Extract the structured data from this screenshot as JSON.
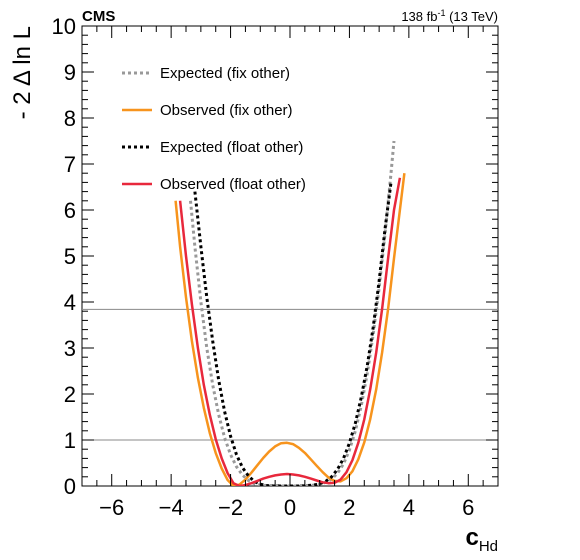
{
  "chart_data": {
    "type": "line",
    "title_left": "CMS",
    "title_right": {
      "text": "138 fb",
      "sup": "-1",
      "suffix": " (13 TeV)"
    },
    "xlabel": {
      "main": "c",
      "sub": "Hd"
    },
    "ylabel": "- 2 Δ ln L",
    "xlim": [
      -7,
      7
    ],
    "ylim": [
      0,
      10
    ],
    "x_ticks": [
      -6,
      -4,
      -2,
      0,
      2,
      4,
      6
    ],
    "y_ticks": [
      0,
      1,
      2,
      3,
      4,
      5,
      6,
      7,
      8,
      9,
      10
    ],
    "reference_lines": [
      1,
      3.84
    ],
    "legend_position": "top-left",
    "colors": {
      "expected_fix": "#999999",
      "observed_fix": "#f7941d",
      "expected_float": "#000000",
      "observed_float": "#e8283c",
      "reference": "#888888"
    },
    "series": [
      {
        "name": "Expected (fix other)",
        "style": "dotted",
        "color": "#999999",
        "x": [
          -3.35,
          -3.2,
          -3.0,
          -2.8,
          -2.6,
          -2.4,
          -2.2,
          -2.0,
          -1.8,
          -1.6,
          -1.4,
          -1.2,
          -1.0,
          -0.8,
          -0.6,
          -0.4,
          -0.2,
          0.0,
          0.2,
          0.4,
          0.6,
          0.8,
          1.0,
          1.2,
          1.4,
          1.6,
          1.8,
          2.0,
          2.2,
          2.4,
          2.6,
          2.8,
          3.0,
          3.2,
          3.4,
          3.5
        ],
        "y": [
          6.2,
          5.2,
          4.0,
          3.0,
          2.2,
          1.55,
          1.05,
          0.68,
          0.42,
          0.24,
          0.12,
          0.05,
          0.02,
          0.01,
          0.01,
          0.01,
          0.0,
          0.0,
          0.0,
          0.01,
          0.01,
          0.02,
          0.04,
          0.08,
          0.15,
          0.28,
          0.48,
          0.78,
          1.2,
          1.75,
          2.45,
          3.3,
          4.3,
          5.5,
          6.8,
          7.5
        ]
      },
      {
        "name": "Observed (fix other)",
        "style": "solid",
        "color": "#f7941d",
        "x": [
          -3.85,
          -3.7,
          -3.5,
          -3.3,
          -3.1,
          -2.9,
          -2.7,
          -2.5,
          -2.3,
          -2.1,
          -1.9,
          -1.7,
          -1.5,
          -1.3,
          -1.1,
          -0.9,
          -0.7,
          -0.5,
          -0.3,
          -0.1,
          0.1,
          0.3,
          0.5,
          0.7,
          0.9,
          1.1,
          1.3,
          1.5,
          1.7,
          1.9,
          2.1,
          2.3,
          2.5,
          2.7,
          2.9,
          3.1,
          3.3,
          3.5,
          3.7,
          3.85
        ],
        "y": [
          6.2,
          5.2,
          4.1,
          3.15,
          2.35,
          1.7,
          1.15,
          0.72,
          0.38,
          0.13,
          0.0,
          0.03,
          0.14,
          0.29,
          0.45,
          0.61,
          0.75,
          0.86,
          0.93,
          0.94,
          0.91,
          0.83,
          0.72,
          0.58,
          0.44,
          0.3,
          0.18,
          0.11,
          0.1,
          0.17,
          0.32,
          0.58,
          0.95,
          1.45,
          2.1,
          2.9,
          3.85,
          4.95,
          6.0,
          6.8
        ]
      },
      {
        "name": "Expected (float other)",
        "style": "dotted",
        "color": "#000000",
        "x": [
          -3.2,
          -3.0,
          -2.8,
          -2.6,
          -2.4,
          -2.2,
          -2.0,
          -1.8,
          -1.6,
          -1.4,
          -1.2,
          -1.0,
          -0.8,
          -0.6,
          -0.4,
          -0.2,
          0.0,
          0.2,
          0.4,
          0.6,
          0.8,
          1.0,
          1.2,
          1.4,
          1.6,
          1.8,
          2.0,
          2.2,
          2.4,
          2.6,
          2.8,
          3.0,
          3.2,
          3.4
        ],
        "y": [
          6.4,
          5.2,
          4.1,
          3.15,
          2.3,
          1.62,
          1.08,
          0.68,
          0.4,
          0.22,
          0.1,
          0.04,
          0.01,
          0.0,
          0.0,
          0.0,
          0.0,
          0.0,
          0.0,
          0.01,
          0.02,
          0.05,
          0.1,
          0.2,
          0.36,
          0.6,
          0.93,
          1.37,
          1.93,
          2.62,
          3.45,
          4.45,
          5.6,
          6.6
        ]
      },
      {
        "name": "Observed (float other)",
        "style": "solid",
        "color": "#e8283c",
        "x": [
          -3.7,
          -3.5,
          -3.3,
          -3.1,
          -2.9,
          -2.7,
          -2.5,
          -2.3,
          -2.1,
          -1.9,
          -1.7,
          -1.5,
          -1.3,
          -1.1,
          -0.9,
          -0.7,
          -0.5,
          -0.3,
          -0.1,
          0.1,
          0.3,
          0.5,
          0.7,
          0.9,
          1.1,
          1.3,
          1.5,
          1.7,
          1.9,
          2.1,
          2.3,
          2.5,
          2.7,
          2.9,
          3.1,
          3.3,
          3.5,
          3.7
        ],
        "y": [
          6.2,
          5.0,
          3.95,
          3.0,
          2.2,
          1.55,
          1.02,
          0.6,
          0.28,
          0.06,
          0.0,
          0.02,
          0.06,
          0.11,
          0.16,
          0.2,
          0.23,
          0.25,
          0.26,
          0.25,
          0.23,
          0.2,
          0.16,
          0.12,
          0.08,
          0.06,
          0.07,
          0.14,
          0.3,
          0.56,
          0.94,
          1.45,
          2.1,
          2.9,
          3.85,
          4.95,
          6.0,
          6.7
        ]
      }
    ]
  }
}
